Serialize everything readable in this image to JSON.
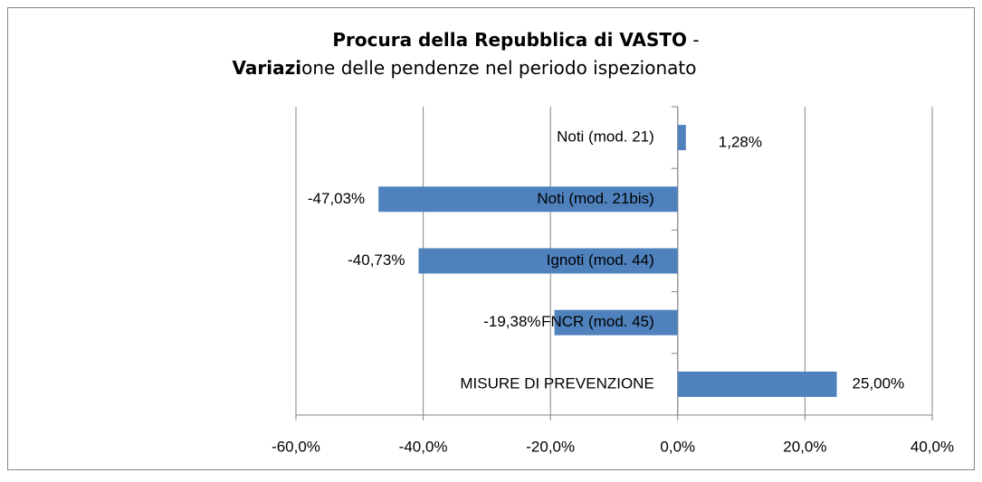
{
  "chart_data": {
    "type": "hbar",
    "title": [
      {
        "text": "Procura della Repubblica di VASTO",
        "bold": true
      },
      {
        "text": " - ",
        "bold": false
      }
    ],
    "subtitle": [
      {
        "text": "Variazi",
        "bold": true
      },
      {
        "text": "one delle pendenze nel periodo ispezionato",
        "bold": false
      }
    ],
    "categories": [
      "Noti (mod. 21)",
      "Noti (mod. 21bis)",
      "Ignoti (mod. 44)",
      "FNCR (mod. 45)",
      "MISURE DI PREVENZIONE"
    ],
    "values": [
      1.28,
      -47.03,
      -40.73,
      -19.38,
      25.0
    ],
    "value_labels": [
      "1,28%",
      "-47,03%",
      "-40,73%",
      "-19,38%",
      "25,00%"
    ],
    "color": "#4f81bd",
    "xlim": [
      -60,
      40
    ],
    "xticks": [
      {
        "value": -60,
        "label": "-60,0%"
      },
      {
        "value": -40,
        "label": "-40,0%"
      },
      {
        "value": -20,
        "label": "-20,0%"
      },
      {
        "value": 0,
        "label": "0,0%"
      },
      {
        "value": 20,
        "label": "20,0%"
      },
      {
        "value": 40,
        "label": "40,0%"
      }
    ],
    "grid": true
  }
}
